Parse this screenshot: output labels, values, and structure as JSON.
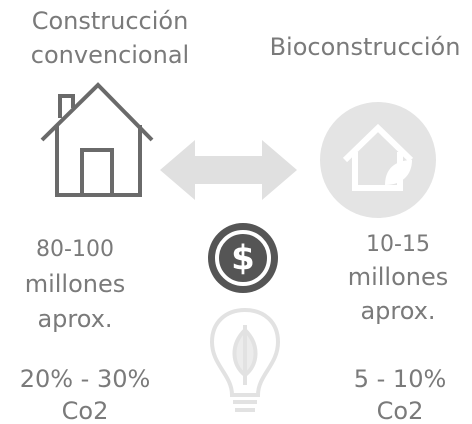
{
  "left": {
    "title_lines": [
      "Construcción",
      "convencional"
    ],
    "cost_lines": [
      "80-100",
      "millones",
      "aprox."
    ],
    "emission_lines": [
      "20% - 30%",
      "Co2"
    ]
  },
  "right": {
    "title": "Bioconstrucción",
    "cost_lines": [
      "10-15",
      "millones",
      "aprox."
    ],
    "emission_lines": [
      "5 - 10%",
      "Co2"
    ]
  }
}
